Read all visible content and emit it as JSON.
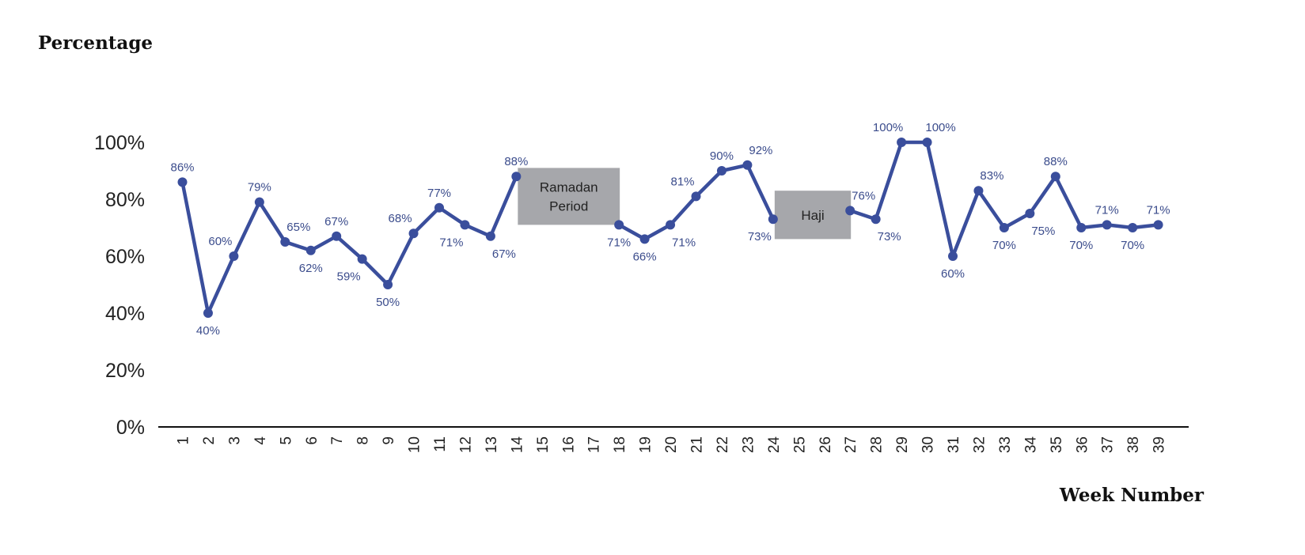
{
  "chart_data": {
    "type": "line",
    "ylabel": "Percentage",
    "xlabel": "Week Number",
    "ylim": [
      0,
      100
    ],
    "yticks": [
      "0%",
      "20%",
      "40%",
      "60%",
      "80%",
      "100%"
    ],
    "categories": [
      "1",
      "2",
      "3",
      "4",
      "5",
      "6",
      "7",
      "8",
      "9",
      "10",
      "11",
      "12",
      "13",
      "14",
      "15",
      "16",
      "17",
      "18",
      "19",
      "20",
      "21",
      "22",
      "23",
      "24",
      "25",
      "26",
      "27",
      "28",
      "29",
      "30",
      "31",
      "32",
      "33",
      "34",
      "35",
      "36",
      "37",
      "38",
      "39"
    ],
    "segments": [
      {
        "start_week": 1,
        "values": [
          86,
          40,
          60,
          79,
          65,
          62,
          67,
          59,
          50,
          68,
          77,
          71,
          67,
          88
        ]
      },
      {
        "start_week": 18,
        "values": [
          71,
          66,
          71,
          81,
          90,
          92,
          73
        ]
      },
      {
        "start_week": 27,
        "values": [
          76,
          73,
          100,
          100,
          60,
          83,
          70,
          75,
          88,
          70,
          71,
          70,
          71
        ]
      }
    ],
    "labeled_points": [
      {
        "week": 1,
        "label": "86%",
        "pos": "above"
      },
      {
        "week": 2,
        "label": "40%",
        "pos": "below"
      },
      {
        "week": 3,
        "label": "60%",
        "pos": "above-left"
      },
      {
        "week": 4,
        "label": "79%",
        "pos": "above"
      },
      {
        "week": 5,
        "label": "65%",
        "pos": "above-right"
      },
      {
        "week": 6,
        "label": "62%",
        "pos": "below"
      },
      {
        "week": 7,
        "label": "67%",
        "pos": "above"
      },
      {
        "week": 8,
        "label": "59%",
        "pos": "below-left"
      },
      {
        "week": 9,
        "label": "50%",
        "pos": "below"
      },
      {
        "week": 10,
        "label": "68%",
        "pos": "above-left"
      },
      {
        "week": 11,
        "label": "77%",
        "pos": "above"
      },
      {
        "week": 12,
        "label": "71%",
        "pos": "below-left"
      },
      {
        "week": 13,
        "label": "67%",
        "pos": "below-right"
      },
      {
        "week": 14,
        "label": "88%",
        "pos": "above"
      },
      {
        "week": 18,
        "label": "71%",
        "pos": "below"
      },
      {
        "week": 19,
        "label": "66%",
        "pos": "below"
      },
      {
        "week": 20,
        "label": "71%",
        "pos": "below-right"
      },
      {
        "week": 21,
        "label": "81%",
        "pos": "above-left"
      },
      {
        "week": 22,
        "label": "90%",
        "pos": "above"
      },
      {
        "week": 23,
        "label": "92%",
        "pos": "above-right"
      },
      {
        "week": 24,
        "label": "73%",
        "pos": "below-left"
      },
      {
        "week": 27,
        "label": "76%",
        "pos": "above-right"
      },
      {
        "week": 28,
        "label": "73%",
        "pos": "below-right"
      },
      {
        "week": 29,
        "label": "100%",
        "pos": "above-left"
      },
      {
        "week": 30,
        "label": "100%",
        "pos": "above-right"
      },
      {
        "week": 31,
        "label": "60%",
        "pos": "below"
      },
      {
        "week": 32,
        "label": "83%",
        "pos": "above-right"
      },
      {
        "week": 33,
        "label": "70%",
        "pos": "below"
      },
      {
        "week": 34,
        "label": "75%",
        "pos": "below-right"
      },
      {
        "week": 35,
        "label": "88%",
        "pos": "above"
      },
      {
        "week": 36,
        "label": "70%",
        "pos": "below"
      },
      {
        "week": 37,
        "label": "71%",
        "pos": "above"
      },
      {
        "week": 38,
        "label": "70%",
        "pos": "below"
      },
      {
        "week": 39,
        "label": "71%",
        "pos": "above"
      }
    ],
    "annotations": [
      {
        "text_lines": [
          "Ramadan",
          "Period"
        ],
        "week_start": 14,
        "week_end": 18,
        "y_low": 71,
        "y_high": 91
      },
      {
        "text_lines": [
          "Haji"
        ],
        "week_start": 24,
        "week_end": 27,
        "y_low": 66,
        "y_high": 83
      }
    ],
    "colors": {
      "line": "#3a4e9c",
      "point": "#3a4e9c",
      "label": "#3b4c8c",
      "band": "#a6a7ab",
      "axis": "#111111"
    },
    "grid": false,
    "legend": "none"
  }
}
